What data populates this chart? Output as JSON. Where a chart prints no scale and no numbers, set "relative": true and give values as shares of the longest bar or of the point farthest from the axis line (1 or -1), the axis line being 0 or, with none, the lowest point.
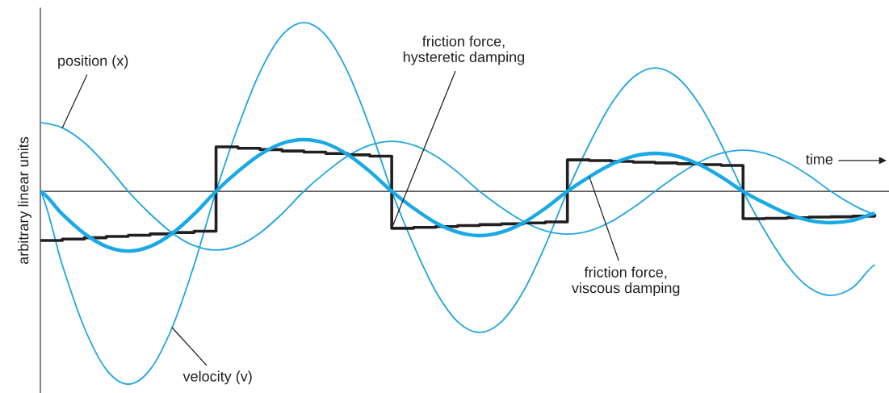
{
  "chart_data": {
    "type": "line",
    "relative": true,
    "ylabel": "arbitrary linear units",
    "categories": [
      null,
      null,
      null,
      null,
      null,
      null,
      null,
      null,
      null,
      null,
      null,
      null,
      null,
      null,
      null,
      null,
      null,
      null,
      null,
      null,
      null,
      null,
      null,
      null,
      null,
      null,
      null,
      null,
      null,
      null,
      null,
      null,
      null,
      null,
      null,
      null,
      null,
      null,
      null
    ],
    "series": [
      {
        "name": "position (x)",
        "color": "#1fa6e0",
        "values": [
          0.356,
          0.329,
          0.252,
          0.136,
          0,
          -0.117,
          -0.216,
          -0.282,
          -0.305,
          -0.282,
          -0.216,
          -0.117,
          0,
          0.099,
          0.183,
          0.239,
          0.259,
          0.239,
          0.183,
          0.099,
          0,
          -0.085,
          -0.157,
          -0.205,
          -0.222,
          -0.205,
          -0.157,
          -0.085,
          0,
          0.082,
          0.151,
          0.197,
          0.213,
          0.197,
          0.151,
          0.082,
          0,
          -0.07,
          -0.12
        ]
      },
      {
        "name": "velocity (v)",
        "color": "#1fa6e0",
        "values": [
          0,
          -0.383,
          -0.707,
          -0.924,
          -1,
          -0.924,
          -0.707,
          -0.383,
          0,
          0.334,
          0.618,
          0.808,
          0.874,
          0.808,
          0.618,
          0.334,
          0,
          -0.28,
          -0.518,
          -0.676,
          -0.732,
          -0.676,
          -0.518,
          -0.28,
          0,
          0.245,
          0.453,
          0.591,
          0.64,
          0.591,
          0.453,
          0.245,
          0,
          -0.207,
          -0.382,
          -0.499,
          -0.54,
          -0.499,
          -0.382
        ]
      },
      {
        "name": "friction force,\nhysteretic damping",
        "type": "step",
        "color": "#231f20",
        "values": [
          -0.255,
          -0.248,
          -0.241,
          -0.234,
          -0.228,
          -0.221,
          -0.214,
          -0.207,
          0.23,
          0.223,
          0.216,
          0.209,
          0.203,
          0.196,
          0.189,
          0.182,
          -0.192,
          -0.187,
          -0.183,
          -0.178,
          -0.173,
          -0.169,
          -0.164,
          -0.159,
          0.163,
          0.159,
          0.155,
          0.151,
          0.147,
          0.143,
          0.138,
          0.134,
          -0.142,
          -0.14,
          -0.137,
          -0.134,
          -0.132,
          -0.129,
          -0.126
        ]
      },
      {
        "name": "friction force,\nviscous damping",
        "color": "#19a9e6",
        "values": [
          0,
          -0.119,
          -0.219,
          -0.286,
          -0.31,
          -0.286,
          -0.219,
          -0.119,
          0,
          0.103,
          0.19,
          0.248,
          0.268,
          0.248,
          0.19,
          0.103,
          0,
          -0.088,
          -0.163,
          -0.212,
          -0.23,
          -0.212,
          -0.163,
          -0.088,
          0,
          0.075,
          0.139,
          0.182,
          0.197,
          0.182,
          0.139,
          0.075,
          0,
          -0.062,
          -0.115,
          -0.151,
          -0.163,
          -0.151,
          -0.115
        ]
      }
    ],
    "annotations": [
      "time"
    ],
    "legend": false,
    "marker": "none",
    "line_style": "solid"
  }
}
